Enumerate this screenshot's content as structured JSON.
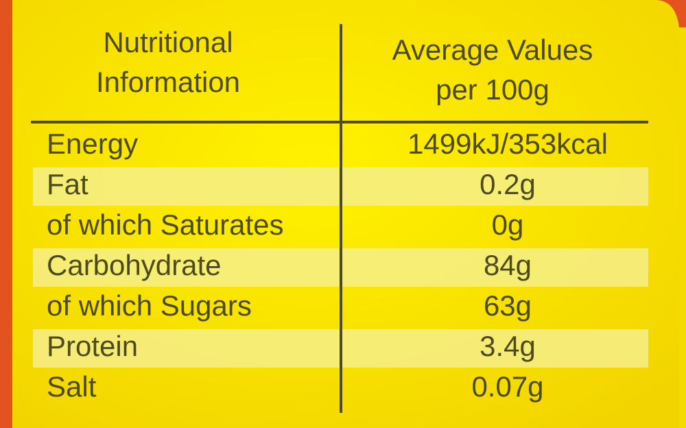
{
  "table": {
    "header": [
      [
        "Nutritional",
        "Information"
      ],
      [
        "Average Values",
        "per 100g"
      ]
    ],
    "rows": [
      [
        "Energy",
        "1499kJ/353kcal"
      ],
      [
        "Fat",
        "0.2g"
      ],
      [
        "of which Saturates",
        "0g"
      ],
      [
        "Carbohydrate",
        "84g"
      ],
      [
        "of which Sugars",
        "63g"
      ],
      [
        "Protein",
        "3.4g"
      ],
      [
        "Salt",
        "0.07g"
      ]
    ]
  }
}
